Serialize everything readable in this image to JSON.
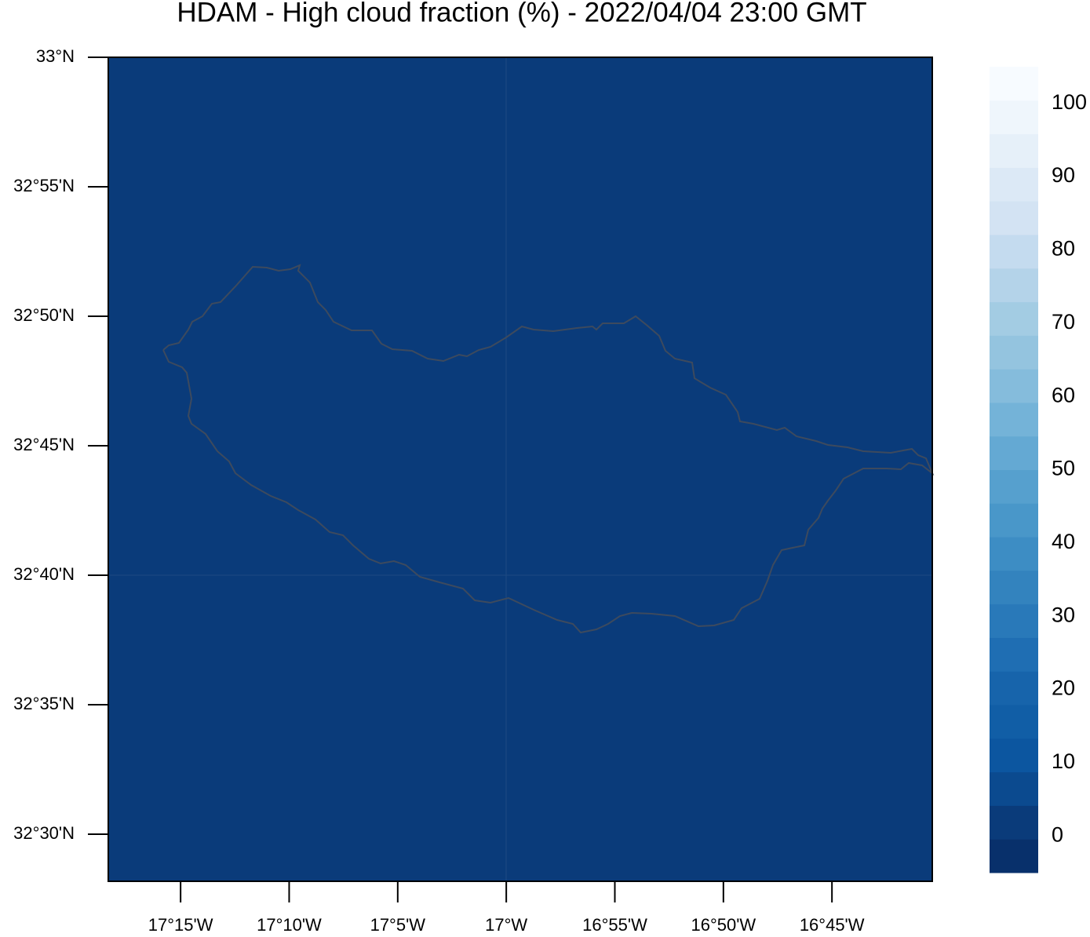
{
  "map": {
    "title": "HDAM - High cloud fraction (%)  -  2022/04/04  23:00 GMT",
    "latlim": [
      32.4697,
      33
    ],
    "lonlim": [
      -17.3055,
      -16.673
    ],
    "fill_color": "#0a3b7a",
    "coast_color": "#3d4a5e",
    "lat_ticks": [
      {
        "value": 33,
        "label": "33°N"
      },
      {
        "value": 32.91667,
        "label": "32°55'N"
      },
      {
        "value": 32.83333,
        "label": "32°50'N"
      },
      {
        "value": 32.75,
        "label": "32°45'N"
      },
      {
        "value": 32.66667,
        "label": "32°40'N"
      },
      {
        "value": 32.58333,
        "label": "32°35'N"
      },
      {
        "value": 32.5,
        "label": "32°30'N"
      }
    ],
    "lon_ticks": [
      {
        "value": -17.25,
        "label": "17°15'W"
      },
      {
        "value": -17.16667,
        "label": "17°10'W"
      },
      {
        "value": -17.08333,
        "label": "17°5'W"
      },
      {
        "value": -17,
        "label": "17°W"
      },
      {
        "value": -16.91667,
        "label": "16°55'W"
      },
      {
        "value": -16.83333,
        "label": "16°50'W"
      },
      {
        "value": -16.75,
        "label": "16°45'W"
      }
    ],
    "colorbar": {
      "lim": [
        -5,
        105
      ],
      "ticks": [
        0,
        10,
        20,
        30,
        40,
        50,
        60,
        70,
        80,
        90,
        100
      ],
      "colors": [
        "#08306b",
        "#0a3b7a",
        "#0b4a8f",
        "#0c56a0",
        "#115ea6",
        "#1764ab",
        "#1f6eb3",
        "#2979b9",
        "#3383be",
        "#3d8dc4",
        "#4997c9",
        "#56a0ce",
        "#64a9d3",
        "#74b3d8",
        "#85bcdc",
        "#94c4df",
        "#a3cce3",
        "#b4d3e9",
        "#c4dbef",
        "#d3e3f3",
        "#dce9f6",
        "#e6f0f9",
        "#eff6fc",
        "#f7fbff"
      ]
    }
  }
}
